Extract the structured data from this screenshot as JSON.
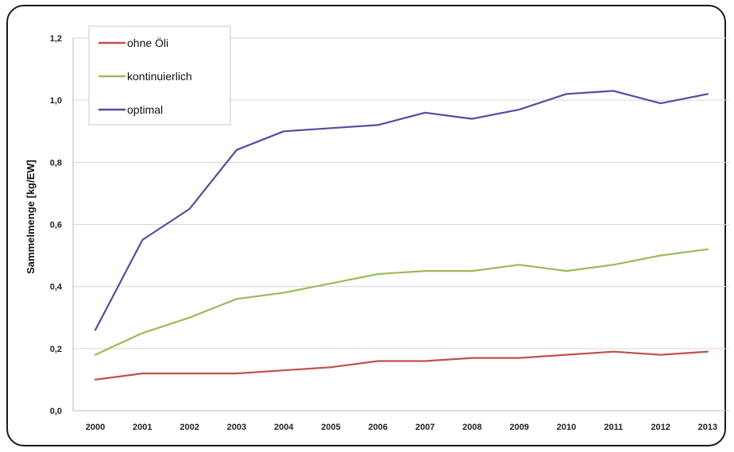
{
  "chart_data": {
    "type": "line",
    "title": "",
    "xlabel": "",
    "ylabel": "Sammelmenge [kg/EW]",
    "ylim": [
      0,
      1.2
    ],
    "yticks": [
      "0,0",
      "0,2",
      "0,4",
      "0,6",
      "0,8",
      "1,0",
      "1,2"
    ],
    "categories": [
      "2000",
      "2001",
      "2002",
      "2003",
      "2004",
      "2005",
      "2006",
      "2007",
      "2008",
      "2009",
      "2010",
      "2011",
      "2012",
      "2013"
    ],
    "grid": true,
    "legend_position": "top-left",
    "series": [
      {
        "name": "ohne Öli",
        "color": "#c0504d",
        "values": [
          0.1,
          0.12,
          0.12,
          0.12,
          0.13,
          0.14,
          0.16,
          0.16,
          0.17,
          0.17,
          0.18,
          0.19,
          0.18,
          0.19
        ]
      },
      {
        "name": "kontinuierlich",
        "color": "#9bbb59",
        "values": [
          0.18,
          0.25,
          0.3,
          0.36,
          0.38,
          0.41,
          0.44,
          0.45,
          0.45,
          0.47,
          0.45,
          0.47,
          0.5,
          0.52
        ]
      },
      {
        "name": "optimal",
        "color": "#4f4f9f",
        "values": [
          0.26,
          0.55,
          0.65,
          0.84,
          0.9,
          0.91,
          0.92,
          0.96,
          0.94,
          0.97,
          1.02,
          1.03,
          0.99,
          1.02
        ]
      }
    ]
  }
}
